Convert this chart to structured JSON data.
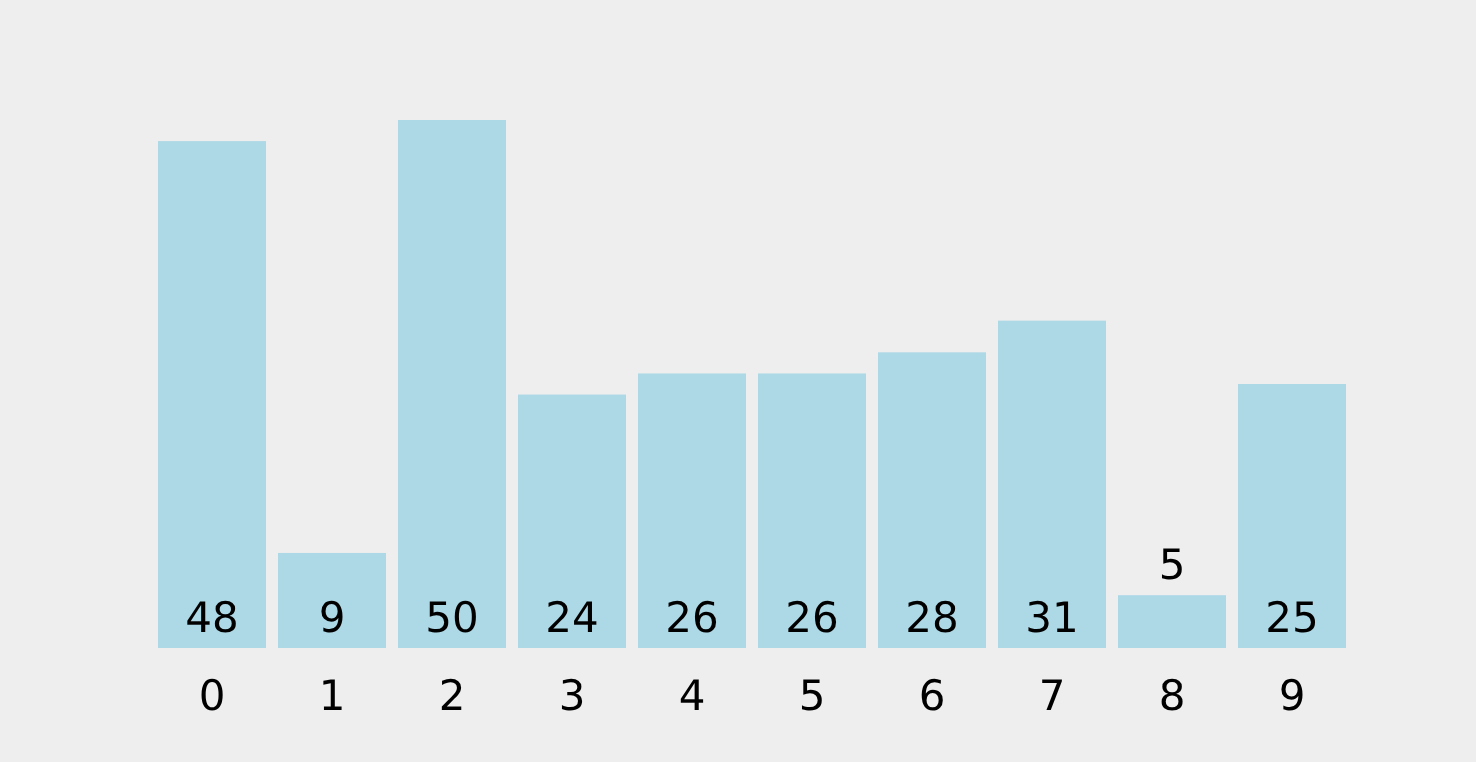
{
  "chart_data": {
    "type": "bar",
    "categories": [
      "0",
      "1",
      "2",
      "3",
      "4",
      "5",
      "6",
      "7",
      "8",
      "9"
    ],
    "values": [
      48,
      9,
      50,
      24,
      26,
      26,
      28,
      31,
      5,
      25
    ],
    "color": "#add8e6",
    "data_labels": true
  }
}
